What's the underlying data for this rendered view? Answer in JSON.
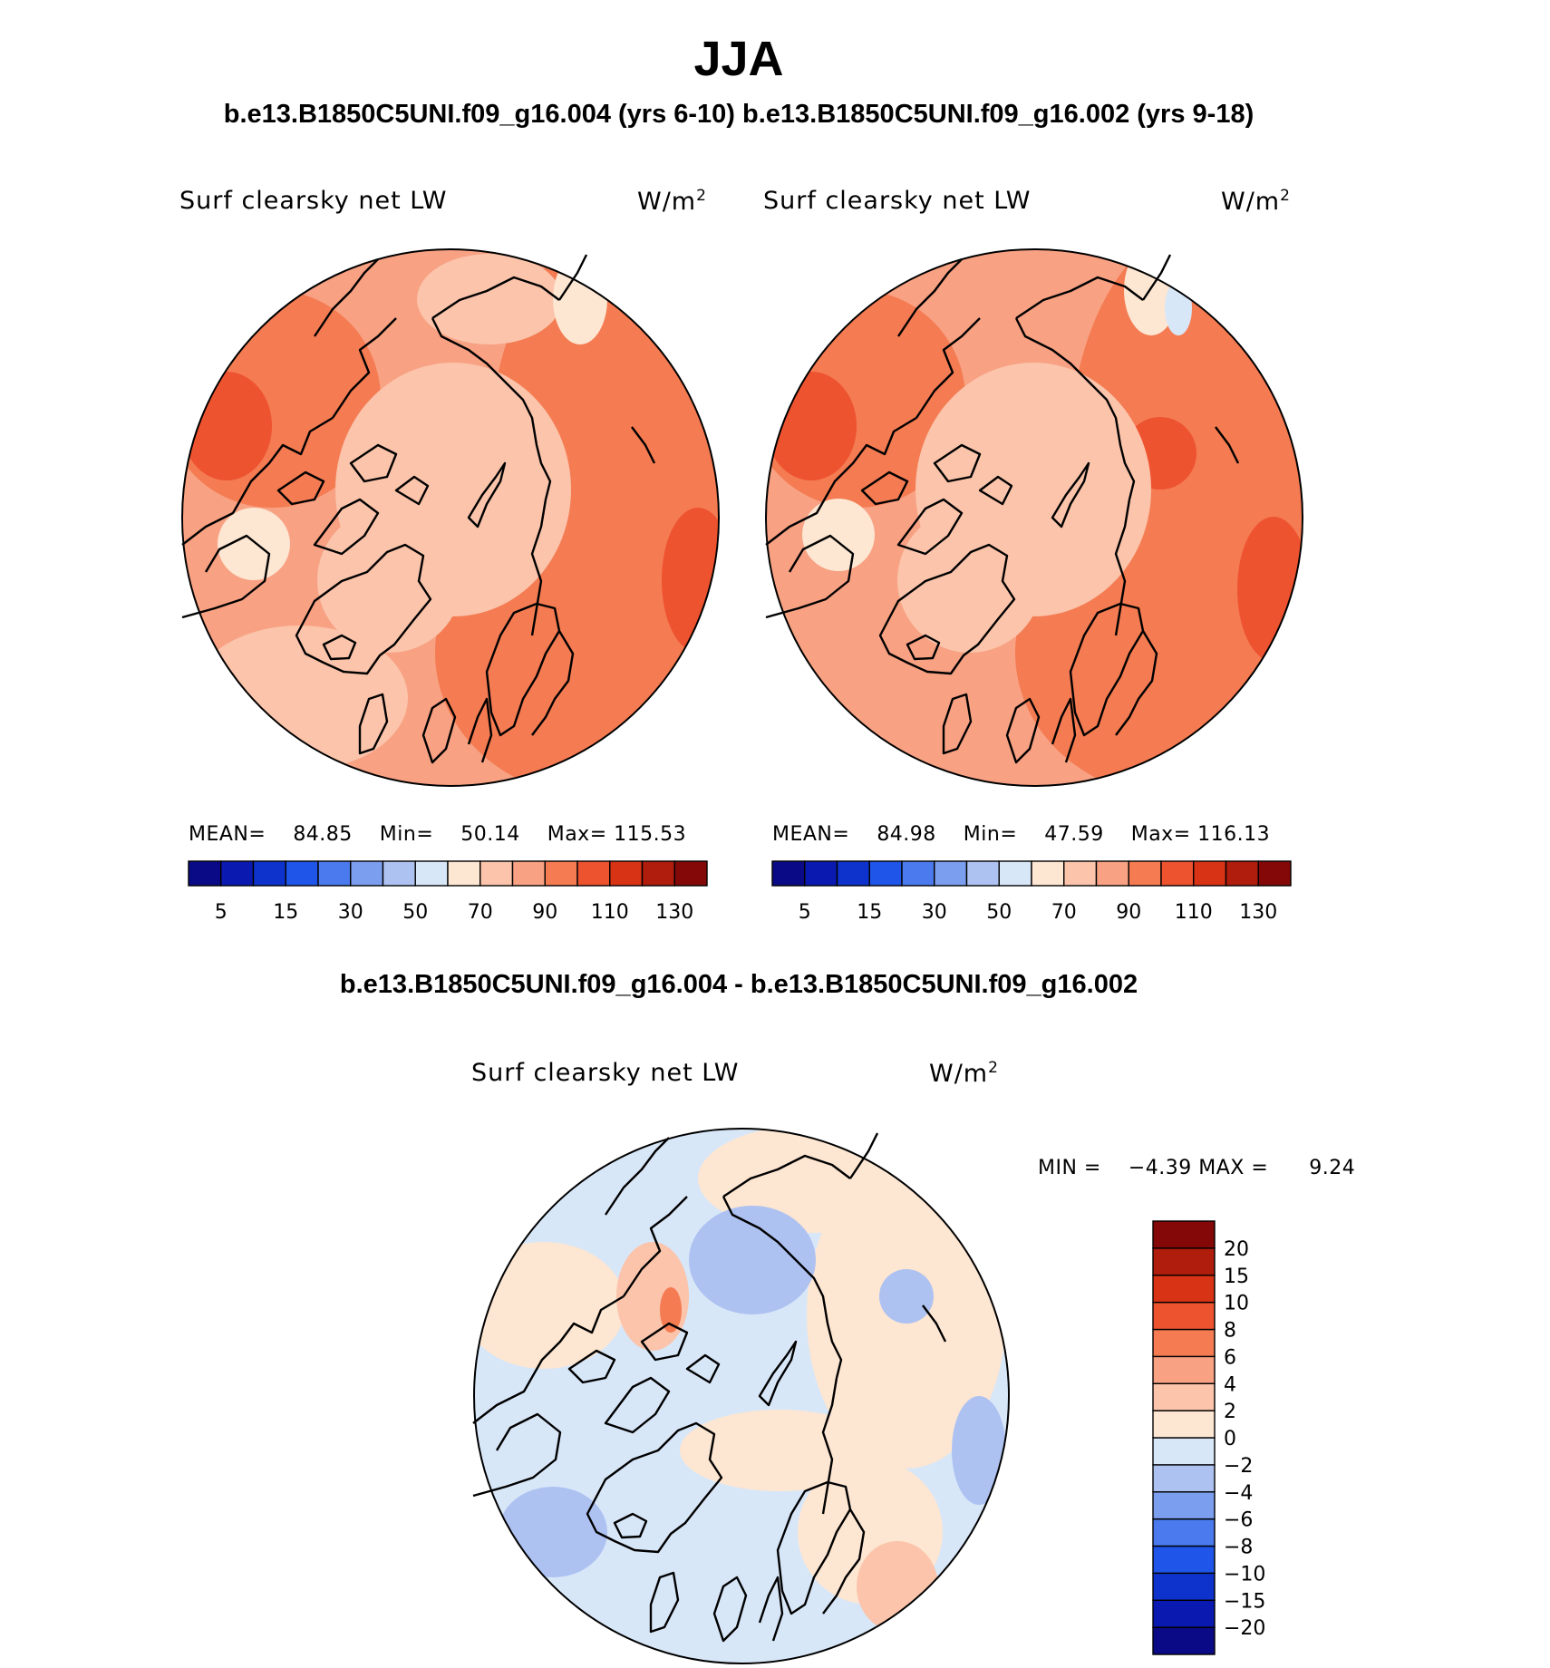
{
  "title": "JJA",
  "subtitle": "b.e13.B1850C5UNI.f09_g16.004 (yrs 6-10) b.e13.B1850C5UNI.f09_g16.002 (yrs 9-18)",
  "colors": {
    "main_scale": [
      "#0a0a86",
      "#0a1ab0",
      "#0e33cc",
      "#1f55e8",
      "#4a7aee",
      "#7c9eef",
      "#aec2f2",
      "#d8e7f8",
      "#fde6d2",
      "#fbc4ab",
      "#f8a183",
      "#f47b52",
      "#ee5330",
      "#d93316",
      "#b01d0d",
      "#840808"
    ],
    "diff_scale": [
      "#0a0a86",
      "#0a1ab0",
      "#0e33cc",
      "#1f55e8",
      "#4a7aee",
      "#7c9eef",
      "#aec2f2",
      "#d8e7f8",
      "#fde6d2",
      "#fbc4ab",
      "#f8a183",
      "#f47b52",
      "#ee5330",
      "#d93316",
      "#b01d0d",
      "#840808"
    ]
  },
  "panels": [
    {
      "variable": "Surf  clearsky  net  LW",
      "units": "W/m",
      "units_sup": "2",
      "mean_label": "MEAN=",
      "mean": "84.85",
      "min_label": "Min=",
      "min": "50.14",
      "max_label": "Max=",
      "max": "115.53",
      "colorbar_ticks": [
        "5",
        "15",
        "30",
        "50",
        "70",
        "90",
        "110",
        "130"
      ]
    },
    {
      "variable": "Surf  clearsky  net  LW",
      "units": "W/m",
      "units_sup": "2",
      "mean_label": "MEAN=",
      "mean": "84.98",
      "min_label": "Min=",
      "min": "47.59",
      "max_label": "Max=",
      "max": "116.13",
      "colorbar_ticks": [
        "5",
        "15",
        "30",
        "50",
        "70",
        "90",
        "110",
        "130"
      ]
    }
  ],
  "difference": {
    "title": "b.e13.B1850C5UNI.f09_g16.004 - b.e13.B1850C5UNI.f09_g16.002",
    "variable": "Surf  clearsky  net  LW",
    "units": "W/m",
    "units_sup": "2",
    "min_label": "MIN =",
    "min": "−4.39",
    "max_label": "MAX =",
    "max": "9.24",
    "colorbar_ticks": [
      "20",
      "15",
      "10",
      "8",
      "6",
      "4",
      "2",
      "0",
      "−2",
      "−4",
      "−6",
      "−8",
      "−10",
      "−15",
      "−20"
    ]
  }
}
